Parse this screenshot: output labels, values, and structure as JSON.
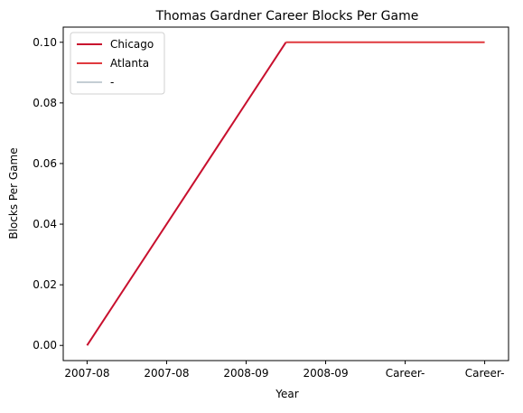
{
  "chart_data": {
    "type": "line",
    "title": "Thomas Gardner  Career Blocks Per Game",
    "xlabel": "Year",
    "ylabel": "Blocks Per Game",
    "x_tick_labels": [
      "2007-08",
      "2007-08",
      "2008-09",
      "2008-09",
      "Career-",
      "Career-"
    ],
    "y_ticks": [
      0.0,
      0.02,
      0.04,
      0.06,
      0.08,
      0.1
    ],
    "y_tick_labels": [
      "0.00",
      "0.02",
      "0.04",
      "0.06",
      "0.08",
      "0.10"
    ],
    "ylim": [
      -0.005,
      0.105
    ],
    "xlim": [
      -0.3,
      5.3
    ],
    "grid": false,
    "legend_position": "top-left",
    "series": [
      {
        "name": "Chicago",
        "color": "#c8102e",
        "x": [
          0,
          2.5
        ],
        "values": [
          0.0,
          0.1
        ]
      },
      {
        "name": "Atlanta",
        "color": "#e03a3e",
        "x": [
          2.5,
          5.0
        ],
        "values": [
          0.1,
          0.1
        ]
      },
      {
        "name": "-",
        "color": "#c4ced4",
        "x": [],
        "values": []
      }
    ]
  }
}
